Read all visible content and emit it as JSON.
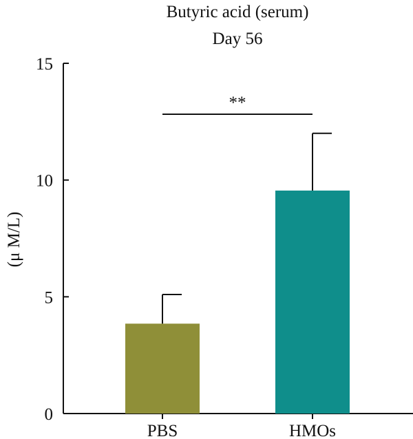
{
  "chart_data": {
    "type": "bar",
    "title": "Butyric acid (serum)",
    "subtitle": "Day 56",
    "xlabel": "",
    "ylabel": "(μ M/L)",
    "ylim": [
      0,
      15
    ],
    "yticks": [
      0,
      5,
      10,
      15
    ],
    "categories": [
      "PBS",
      "HMOs"
    ],
    "values": [
      3.85,
      9.55
    ],
    "error_upper": [
      1.25,
      2.45
    ],
    "colors": [
      "#8f8f38",
      "#0f8e8b"
    ],
    "significance": {
      "label": "**",
      "between": [
        "PBS",
        "HMOs"
      ]
    },
    "grid": false,
    "legend": "none"
  }
}
